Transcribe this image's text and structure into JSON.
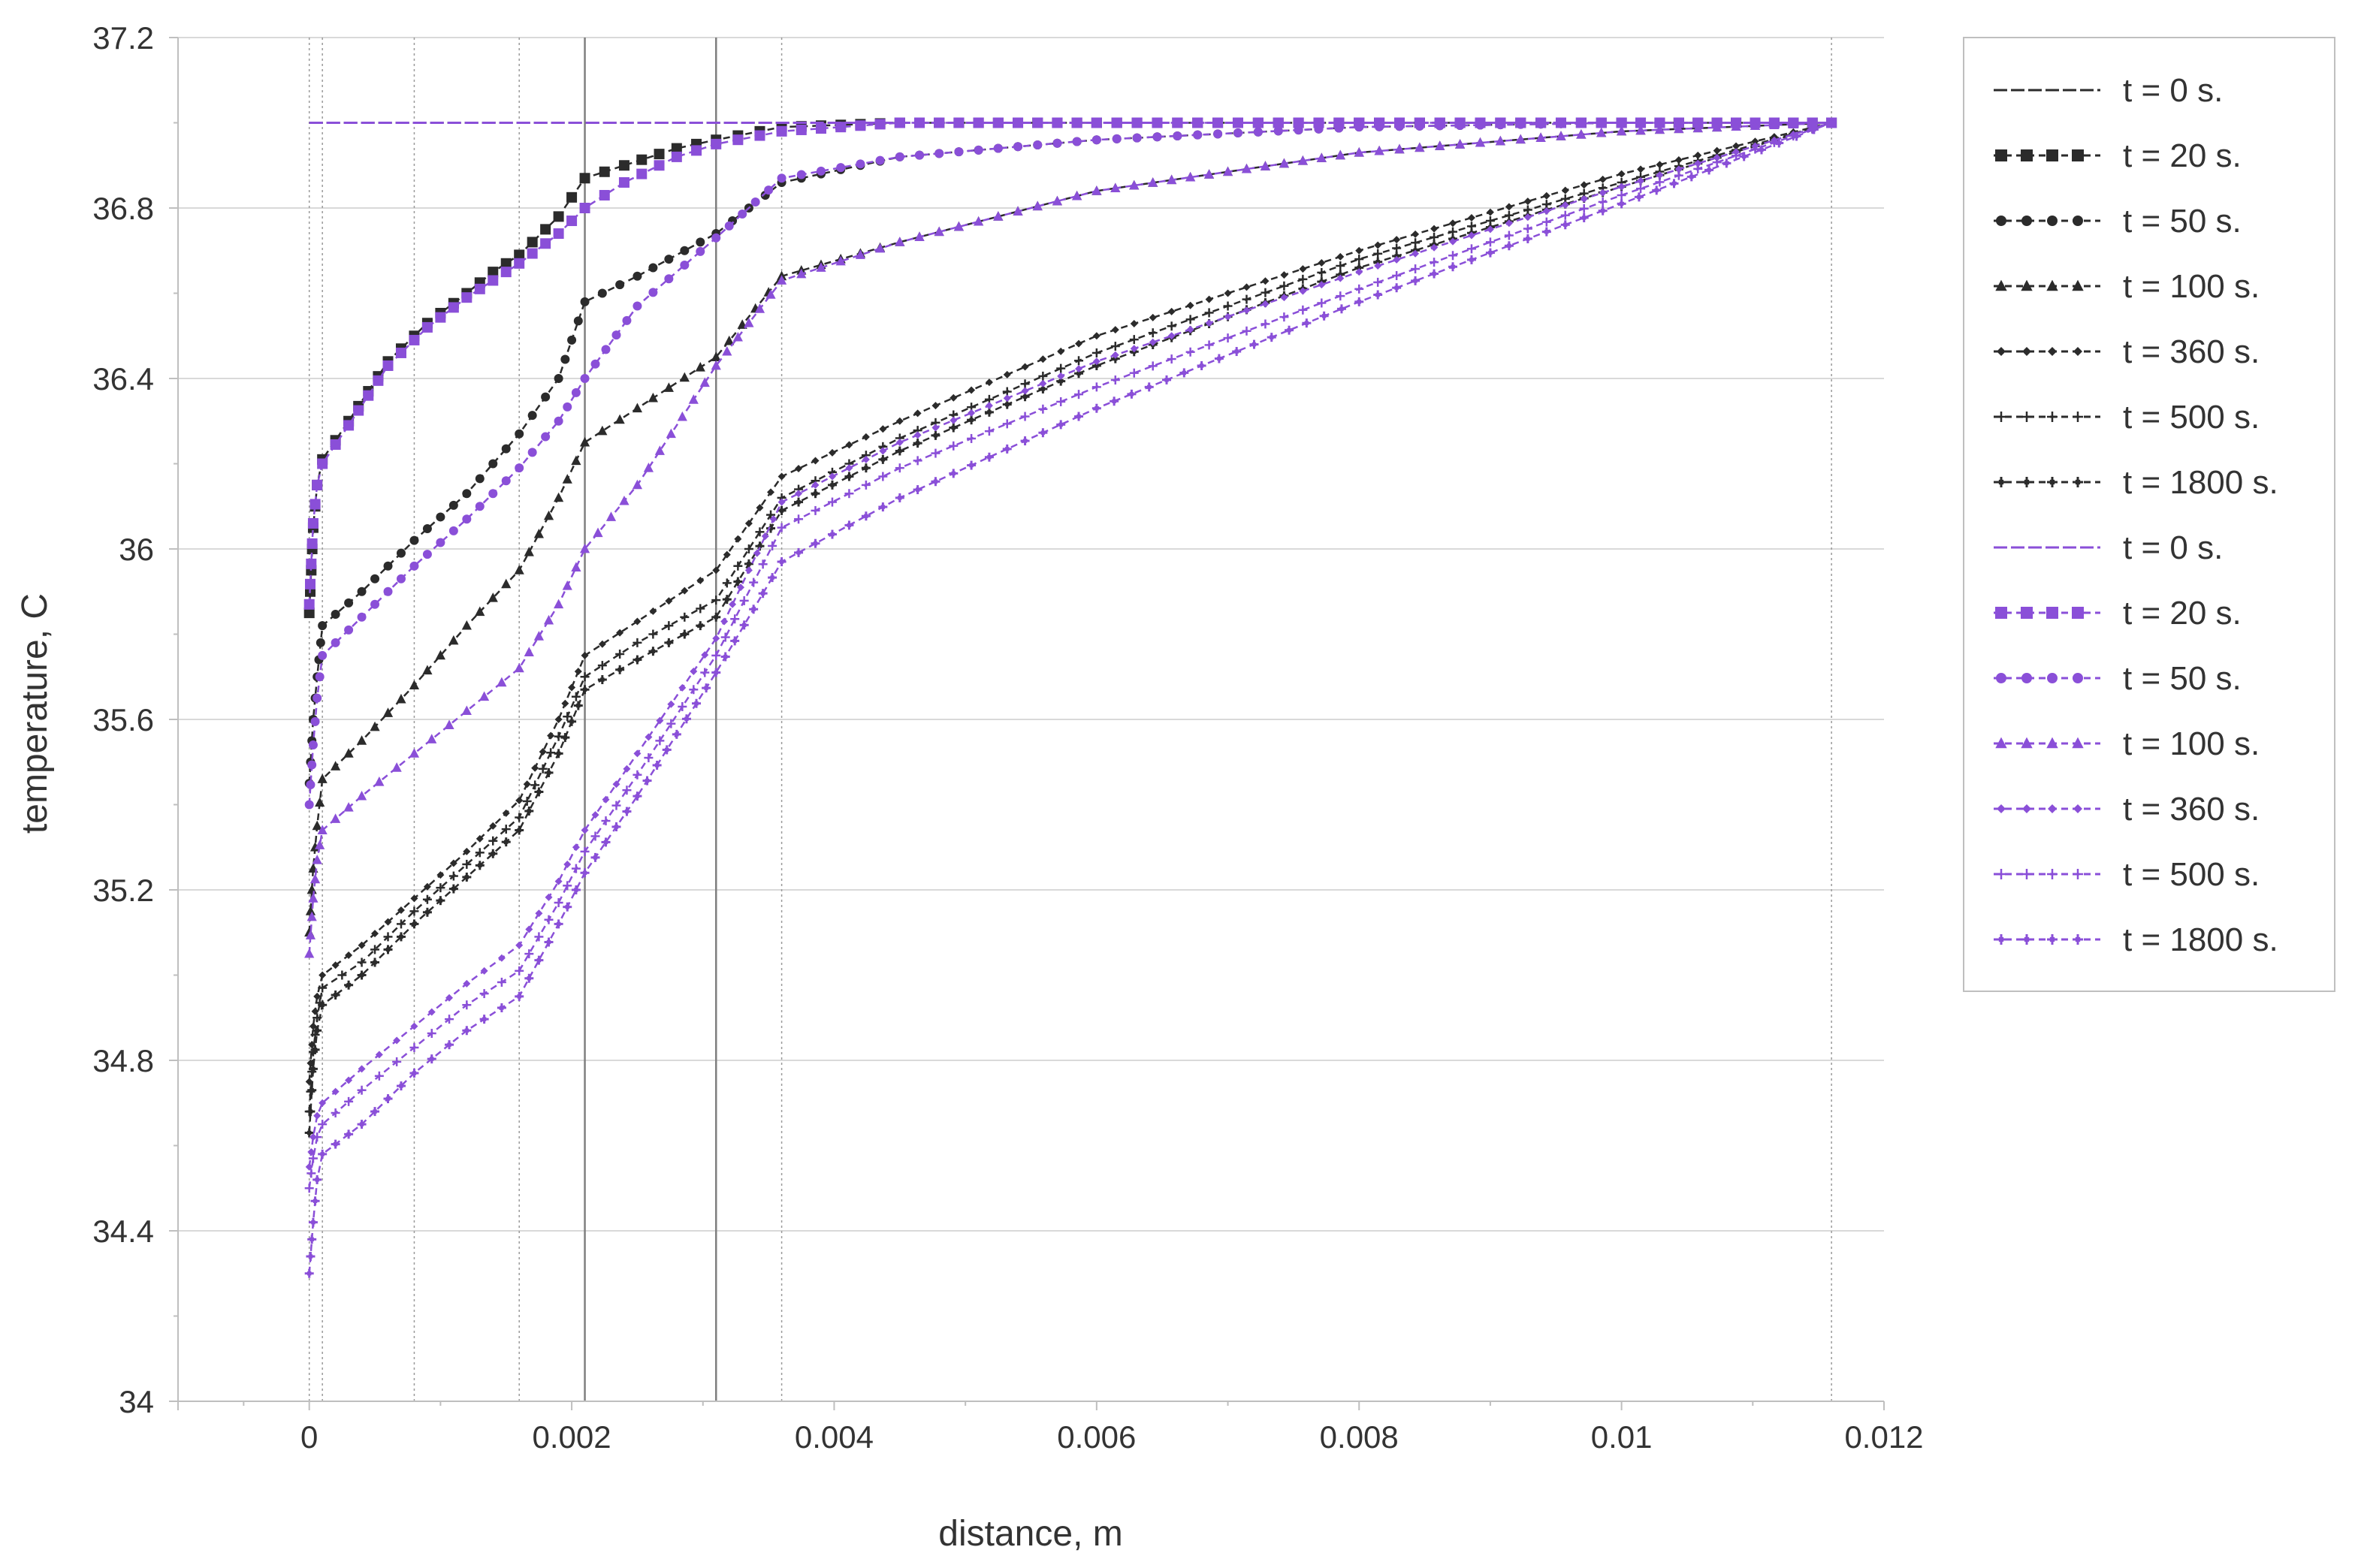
{
  "chart_data": {
    "type": "line",
    "title": "",
    "xlabel": "distance, m",
    "ylabel": "temperature, C",
    "xlim": [
      -0.001,
      0.012
    ],
    "ylim": [
      34,
      37.2
    ],
    "x_ticks": [
      0,
      0.002,
      0.004,
      0.006,
      0.008,
      0.01,
      0.012
    ],
    "x_tick_labels": [
      "0",
      "0.002",
      "0.004",
      "0.006",
      "0.008",
      "0.01",
      "0.012"
    ],
    "y_ticks": [
      34,
      34.4,
      34.8,
      35.2,
      35.6,
      36,
      36.4,
      36.8,
      37.2
    ],
    "y_tick_labels": [
      "34",
      "34.4",
      "34.8",
      "35.2",
      "35.6",
      "36",
      "36.4",
      "36.8",
      "37.2"
    ],
    "grid": "horizontal",
    "vertical_reference_lines": [
      {
        "x": 0,
        "style": "dotted"
      },
      {
        "x": 0.0001,
        "style": "dotted"
      },
      {
        "x": 0.0008,
        "style": "dotted"
      },
      {
        "x": 0.0016,
        "style": "dotted"
      },
      {
        "x": 0.0021,
        "style": "solid"
      },
      {
        "x": 0.0031,
        "style": "solid"
      },
      {
        "x": 0.0036,
        "style": "dotted"
      },
      {
        "x": 0.0116,
        "style": "dotted"
      }
    ],
    "legend_position": "right",
    "colors": {
      "black": "#2b2b2b",
      "purple": "#8a4fd8"
    },
    "series": [
      {
        "name": "t = 0 s.",
        "color": "#2b2b2b",
        "marker": "none",
        "points": [
          [
            0,
            37.0
          ],
          [
            0.0116,
            37.0
          ]
        ]
      },
      {
        "name": "t = 20 s.",
        "color": "#2b2b2b",
        "marker": "square",
        "points": [
          [
            0,
            35.85
          ],
          [
            3e-05,
            36.05
          ],
          [
            6e-05,
            36.15
          ],
          [
            0.0001,
            36.21
          ],
          [
            0.0003,
            36.3
          ],
          [
            0.0006,
            36.44
          ],
          [
            0.0009,
            36.53
          ],
          [
            0.0012,
            36.6
          ],
          [
            0.0014,
            36.65
          ],
          [
            0.0016,
            36.69
          ],
          [
            0.0019,
            36.78
          ],
          [
            0.0021,
            36.87
          ],
          [
            0.0024,
            36.9
          ],
          [
            0.0028,
            36.94
          ],
          [
            0.0031,
            36.96
          ],
          [
            0.0036,
            36.99
          ],
          [
            0.0045,
            37.0
          ],
          [
            0.006,
            37.0
          ],
          [
            0.008,
            37.0
          ],
          [
            0.01,
            37.0
          ],
          [
            0.0116,
            37.0
          ]
        ]
      },
      {
        "name": "t = 50 s.",
        "color": "#2b2b2b",
        "marker": "circle",
        "points": [
          [
            0,
            35.45
          ],
          [
            3e-05,
            35.6
          ],
          [
            6e-05,
            35.7
          ],
          [
            0.0001,
            35.82
          ],
          [
            0.0004,
            35.9
          ],
          [
            0.0008,
            36.02
          ],
          [
            0.0012,
            36.13
          ],
          [
            0.0016,
            36.27
          ],
          [
            0.0019,
            36.4
          ],
          [
            0.0021,
            36.58
          ],
          [
            0.0025,
            36.64
          ],
          [
            0.0031,
            36.74
          ],
          [
            0.0036,
            36.86
          ],
          [
            0.0045,
            36.92
          ],
          [
            0.006,
            36.96
          ],
          [
            0.008,
            36.99
          ],
          [
            0.01,
            37.0
          ],
          [
            0.0116,
            37.0
          ]
        ]
      },
      {
        "name": "t = 100 s.",
        "color": "#2b2b2b",
        "marker": "triangle",
        "points": [
          [
            0,
            35.1
          ],
          [
            3e-05,
            35.25
          ],
          [
            6e-05,
            35.35
          ],
          [
            0.0001,
            35.46
          ],
          [
            0.0004,
            35.55
          ],
          [
            0.0008,
            35.68
          ],
          [
            0.0012,
            35.82
          ],
          [
            0.0016,
            35.95
          ],
          [
            0.0019,
            36.12
          ],
          [
            0.0021,
            36.25
          ],
          [
            0.0025,
            36.33
          ],
          [
            0.0031,
            36.45
          ],
          [
            0.0036,
            36.64
          ],
          [
            0.0045,
            36.72
          ],
          [
            0.006,
            36.84
          ],
          [
            0.008,
            36.93
          ],
          [
            0.01,
            36.98
          ],
          [
            0.0116,
            37.0
          ]
        ]
      },
      {
        "name": "t = 360 s.",
        "color": "#2b2b2b",
        "marker": "diamond",
        "points": [
          [
            0,
            34.75
          ],
          [
            3e-05,
            34.88
          ],
          [
            6e-05,
            34.95
          ],
          [
            0.0001,
            35.0
          ],
          [
            0.0004,
            35.07
          ],
          [
            0.0008,
            35.18
          ],
          [
            0.0012,
            35.29
          ],
          [
            0.0016,
            35.41
          ],
          [
            0.0019,
            35.6
          ],
          [
            0.0021,
            35.75
          ],
          [
            0.0025,
            35.83
          ],
          [
            0.0031,
            35.95
          ],
          [
            0.0036,
            36.17
          ],
          [
            0.0045,
            36.3
          ],
          [
            0.006,
            36.5
          ],
          [
            0.008,
            36.7
          ],
          [
            0.01,
            36.88
          ],
          [
            0.0116,
            37.0
          ]
        ]
      },
      {
        "name": "t = 500 s.",
        "color": "#2b2b2b",
        "marker": "plus",
        "points": [
          [
            0,
            34.68
          ],
          [
            3e-05,
            34.82
          ],
          [
            6e-05,
            34.9
          ],
          [
            0.0001,
            34.97
          ],
          [
            0.0004,
            35.03
          ],
          [
            0.0008,
            35.15
          ],
          [
            0.0012,
            35.26
          ],
          [
            0.0016,
            35.37
          ],
          [
            0.0019,
            35.56
          ],
          [
            0.0021,
            35.7
          ],
          [
            0.0025,
            35.78
          ],
          [
            0.0031,
            35.88
          ],
          [
            0.0036,
            36.12
          ],
          [
            0.0045,
            36.26
          ],
          [
            0.006,
            36.46
          ],
          [
            0.008,
            36.68
          ],
          [
            0.01,
            36.86
          ],
          [
            0.0116,
            37.0
          ]
        ]
      },
      {
        "name": "t = 1800 s.",
        "color": "#2b2b2b",
        "marker": "cross",
        "points": [
          [
            0,
            34.63
          ],
          [
            3e-05,
            34.78
          ],
          [
            6e-05,
            34.87
          ],
          [
            0.0001,
            34.93
          ],
          [
            0.0004,
            35.0
          ],
          [
            0.0008,
            35.12
          ],
          [
            0.0012,
            35.23
          ],
          [
            0.0016,
            35.34
          ],
          [
            0.0019,
            35.52
          ],
          [
            0.0021,
            35.67
          ],
          [
            0.0025,
            35.74
          ],
          [
            0.0031,
            35.84
          ],
          [
            0.0036,
            36.09
          ],
          [
            0.0045,
            36.23
          ],
          [
            0.006,
            36.43
          ],
          [
            0.008,
            36.66
          ],
          [
            0.01,
            36.85
          ],
          [
            0.0116,
            37.0
          ]
        ]
      },
      {
        "name": "t = 0 s.",
        "color": "#8a4fd8",
        "marker": "none",
        "points": [
          [
            0,
            37.0
          ],
          [
            0.0116,
            37.0
          ]
        ]
      },
      {
        "name": "t = 20 s.",
        "color": "#8a4fd8",
        "marker": "square",
        "points": [
          [
            0,
            35.87
          ],
          [
            3e-05,
            36.06
          ],
          [
            6e-05,
            36.15
          ],
          [
            0.0001,
            36.2
          ],
          [
            0.0003,
            36.29
          ],
          [
            0.0006,
            36.43
          ],
          [
            0.0009,
            36.52
          ],
          [
            0.0012,
            36.59
          ],
          [
            0.0014,
            36.63
          ],
          [
            0.0016,
            36.67
          ],
          [
            0.0019,
            36.74
          ],
          [
            0.0021,
            36.8
          ],
          [
            0.0024,
            36.86
          ],
          [
            0.0028,
            36.92
          ],
          [
            0.0031,
            36.95
          ],
          [
            0.0036,
            36.98
          ],
          [
            0.0045,
            37.0
          ],
          [
            0.006,
            37.0
          ],
          [
            0.008,
            37.0
          ],
          [
            0.01,
            37.0
          ],
          [
            0.0116,
            37.0
          ]
        ]
      },
      {
        "name": "t = 50 s.",
        "color": "#8a4fd8",
        "marker": "circle",
        "points": [
          [
            0,
            35.4
          ],
          [
            3e-05,
            35.54
          ],
          [
            6e-05,
            35.65
          ],
          [
            0.0001,
            35.75
          ],
          [
            0.0004,
            35.84
          ],
          [
            0.0008,
            35.96
          ],
          [
            0.0012,
            36.07
          ],
          [
            0.0016,
            36.19
          ],
          [
            0.0019,
            36.3
          ],
          [
            0.0021,
            36.4
          ],
          [
            0.0025,
            36.57
          ],
          [
            0.0031,
            36.73
          ],
          [
            0.0036,
            36.87
          ],
          [
            0.0045,
            36.92
          ],
          [
            0.006,
            36.96
          ],
          [
            0.008,
            36.99
          ],
          [
            0.01,
            37.0
          ],
          [
            0.0116,
            37.0
          ]
        ]
      },
      {
        "name": "t = 100 s.",
        "color": "#8a4fd8",
        "marker": "triangle",
        "points": [
          [
            0,
            35.05
          ],
          [
            3e-05,
            35.18
          ],
          [
            6e-05,
            35.27
          ],
          [
            0.0001,
            35.34
          ],
          [
            0.0004,
            35.42
          ],
          [
            0.0008,
            35.52
          ],
          [
            0.0012,
            35.62
          ],
          [
            0.0016,
            35.72
          ],
          [
            0.0019,
            35.87
          ],
          [
            0.0021,
            36.0
          ],
          [
            0.0025,
            36.15
          ],
          [
            0.0031,
            36.43
          ],
          [
            0.0036,
            36.63
          ],
          [
            0.0045,
            36.72
          ],
          [
            0.006,
            36.84
          ],
          [
            0.008,
            36.93
          ],
          [
            0.01,
            36.98
          ],
          [
            0.0116,
            37.0
          ]
        ]
      },
      {
        "name": "t = 360 s.",
        "color": "#8a4fd8",
        "marker": "diamond",
        "points": [
          [
            0,
            34.55
          ],
          [
            3e-05,
            34.62
          ],
          [
            6e-05,
            34.67
          ],
          [
            0.0001,
            34.7
          ],
          [
            0.0004,
            34.78
          ],
          [
            0.0008,
            34.88
          ],
          [
            0.0012,
            34.98
          ],
          [
            0.0016,
            35.07
          ],
          [
            0.0019,
            35.22
          ],
          [
            0.0021,
            35.34
          ],
          [
            0.0025,
            35.52
          ],
          [
            0.0031,
            35.79
          ],
          [
            0.0036,
            36.11
          ],
          [
            0.0045,
            36.25
          ],
          [
            0.006,
            36.44
          ],
          [
            0.008,
            36.65
          ],
          [
            0.01,
            36.85
          ],
          [
            0.0116,
            37.0
          ]
        ]
      },
      {
        "name": "t = 500 s.",
        "color": "#8a4fd8",
        "marker": "plus",
        "points": [
          [
            0,
            34.5
          ],
          [
            3e-05,
            34.57
          ],
          [
            6e-05,
            34.62
          ],
          [
            0.0001,
            34.65
          ],
          [
            0.0004,
            34.73
          ],
          [
            0.0008,
            34.83
          ],
          [
            0.0012,
            34.93
          ],
          [
            0.0016,
            35.01
          ],
          [
            0.0019,
            35.17
          ],
          [
            0.0021,
            35.29
          ],
          [
            0.0025,
            35.47
          ],
          [
            0.0031,
            35.75
          ],
          [
            0.0036,
            36.05
          ],
          [
            0.0045,
            36.19
          ],
          [
            0.006,
            36.38
          ],
          [
            0.008,
            36.61
          ],
          [
            0.01,
            36.83
          ],
          [
            0.0116,
            37.0
          ]
        ]
      },
      {
        "name": "t = 1800 s.",
        "color": "#8a4fd8",
        "marker": "cross",
        "points": [
          [
            0,
            34.3
          ],
          [
            3e-05,
            34.42
          ],
          [
            6e-05,
            34.52
          ],
          [
            0.0001,
            34.58
          ],
          [
            0.0004,
            34.65
          ],
          [
            0.0008,
            34.77
          ],
          [
            0.0012,
            34.87
          ],
          [
            0.0016,
            34.95
          ],
          [
            0.0019,
            35.12
          ],
          [
            0.0021,
            35.24
          ],
          [
            0.0025,
            35.42
          ],
          [
            0.0031,
            35.71
          ],
          [
            0.0036,
            35.97
          ],
          [
            0.0045,
            36.12
          ],
          [
            0.006,
            36.33
          ],
          [
            0.008,
            36.58
          ],
          [
            0.01,
            36.81
          ],
          [
            0.0116,
            37.0
          ]
        ]
      }
    ]
  }
}
